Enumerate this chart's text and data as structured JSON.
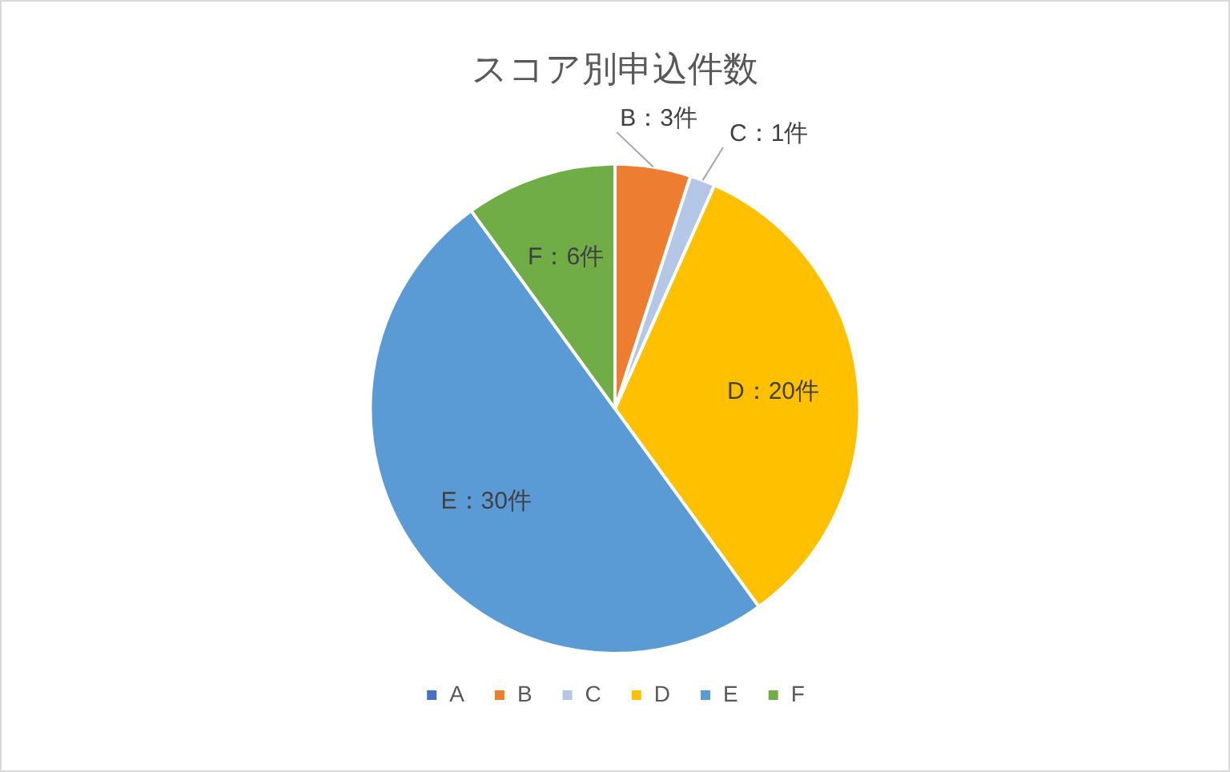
{
  "chart_data": {
    "type": "pie",
    "title": "スコア別申込件数",
    "categories": [
      "A",
      "B",
      "C",
      "D",
      "E",
      "F"
    ],
    "values": [
      0,
      3,
      1,
      20,
      30,
      6
    ],
    "colors": [
      "#4472c4",
      "#ed7d31",
      "#b4c7e7",
      "#ffc000",
      "#5b9bd5",
      "#70ad47"
    ],
    "value_labels": [
      null,
      "B：3件",
      "C：1件",
      "D：20件",
      "E：30件",
      "F：6件"
    ],
    "legend": "bottom"
  }
}
